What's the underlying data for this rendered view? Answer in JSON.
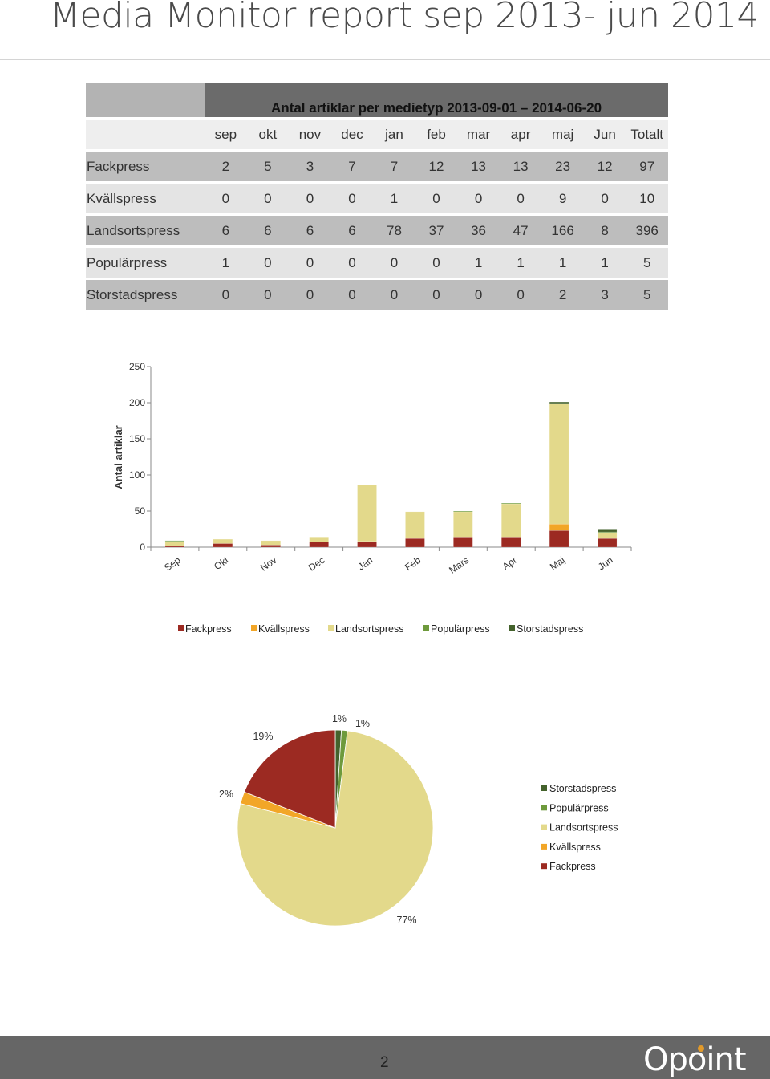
{
  "page": {
    "title": "Media Monitor report sep 2013- jun 2014",
    "page_number": "2"
  },
  "logo": {
    "text": "Opoint"
  },
  "table": {
    "title": "Antal artiklar per medietyp 2013-09-01 – 2014-06-20",
    "columns": [
      "sep",
      "okt",
      "nov",
      "dec",
      "jan",
      "feb",
      "mar",
      "apr",
      "maj",
      "Jun",
      "Totalt"
    ],
    "rows": [
      {
        "label": "Fackpress",
        "values": [
          "2",
          "5",
          "3",
          "7",
          "7",
          "12",
          "13",
          "13",
          "23",
          "12",
          "97"
        ]
      },
      {
        "label": "Kvällspress",
        "values": [
          "0",
          "0",
          "0",
          "0",
          "1",
          "0",
          "0",
          "0",
          "9",
          "0",
          "10"
        ]
      },
      {
        "label": "Landsortspress",
        "values": [
          "6",
          "6",
          "6",
          "6",
          "78",
          "37",
          "36",
          "47",
          "166",
          "8",
          "396"
        ]
      },
      {
        "label": "Populärpress",
        "values": [
          "1",
          "0",
          "0",
          "0",
          "0",
          "0",
          "1",
          "1",
          "1",
          "1",
          "5"
        ]
      },
      {
        "label": "Storstadspress",
        "values": [
          "0",
          "0",
          "0",
          "0",
          "0",
          "0",
          "0",
          "0",
          "2",
          "3",
          "5"
        ]
      }
    ]
  },
  "chart_data": [
    {
      "type": "bar",
      "stacked": true,
      "categories": [
        "Sep",
        "Okt",
        "Nov",
        "Dec",
        "Jan",
        "Feb",
        "Mars",
        "Apr",
        "Maj",
        "Jun"
      ],
      "series": [
        {
          "name": "Fackpress",
          "color": "#9c2a22",
          "values": [
            2,
            5,
            3,
            7,
            7,
            12,
            13,
            13,
            23,
            12
          ]
        },
        {
          "name": "Kvällspress",
          "color": "#f2a627",
          "values": [
            0,
            0,
            0,
            0,
            1,
            0,
            0,
            0,
            9,
            0
          ]
        },
        {
          "name": "Landsortspress",
          "color": "#e3d98b",
          "values": [
            6,
            6,
            6,
            6,
            78,
            37,
            36,
            47,
            166,
            8
          ]
        },
        {
          "name": "Populärpress",
          "color": "#6e9a3c",
          "values": [
            1,
            0,
            0,
            0,
            0,
            0,
            1,
            1,
            1,
            1
          ]
        },
        {
          "name": "Storstadspress",
          "color": "#44622c",
          "values": [
            0,
            0,
            0,
            0,
            0,
            0,
            0,
            0,
            2,
            3
          ]
        }
      ],
      "ylabel": "Antal artiklar",
      "yticks": [
        "0",
        "50",
        "100",
        "150",
        "200",
        "250"
      ],
      "ylim": [
        0,
        250
      ],
      "legend": "bottom",
      "grid": false
    },
    {
      "type": "pie",
      "slices": [
        {
          "name": "Storstadspress",
          "value": 1,
          "label": "1%",
          "color": "#44622c"
        },
        {
          "name": "Populärpress",
          "value": 1,
          "label": "1%",
          "color": "#6e9a3c"
        },
        {
          "name": "Landsortspress",
          "value": 77,
          "label": "77%",
          "color": "#e3d98b"
        },
        {
          "name": "Kvällspress",
          "value": 2,
          "label": "2%",
          "color": "#f2a627"
        },
        {
          "name": "Fackpress",
          "value": 19,
          "label": "19%",
          "color": "#9c2a22"
        }
      ],
      "legend": "right"
    }
  ]
}
